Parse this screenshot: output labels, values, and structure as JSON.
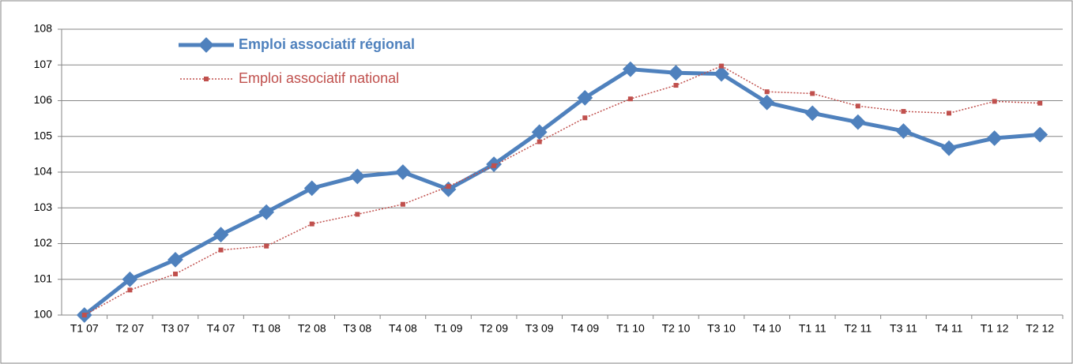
{
  "chart_data": {
    "type": "line",
    "categories": [
      "T1 07",
      "T2 07",
      "T3 07",
      "T4 07",
      "T1 08",
      "T2 08",
      "T3 08",
      "T4 08",
      "T1 09",
      "T2 09",
      "T3 09",
      "T4 09",
      "T1 10",
      "T2 10",
      "T3 10",
      "T4 10",
      "T1 11",
      "T2 11",
      "T3 11",
      "T4 11",
      "T1 12",
      "T2 12"
    ],
    "series": [
      {
        "name": "Emploi associatif régional",
        "color": "#4f81bd",
        "values": [
          100,
          101,
          101.55,
          102.25,
          102.88,
          103.55,
          103.88,
          104,
          103.52,
          104.22,
          105.12,
          106.08,
          106.88,
          106.78,
          106.75,
          105.95,
          105.65,
          105.4,
          105.15,
          104.67,
          104.95,
          105.05
        ]
      },
      {
        "name": "Emploi associatif national",
        "color": "#c0504d",
        "values": [
          100,
          100.7,
          101.15,
          101.82,
          101.93,
          102.55,
          102.82,
          103.1,
          103.6,
          104.18,
          104.85,
          105.52,
          106.05,
          106.43,
          106.97,
          106.25,
          106.2,
          105.85,
          105.7,
          105.65,
          105.98,
          105.93
        ]
      }
    ],
    "ylim": [
      100,
      108
    ],
    "yticks": [
      100,
      101,
      102,
      103,
      104,
      105,
      106,
      107,
      108
    ],
    "grid": true
  }
}
